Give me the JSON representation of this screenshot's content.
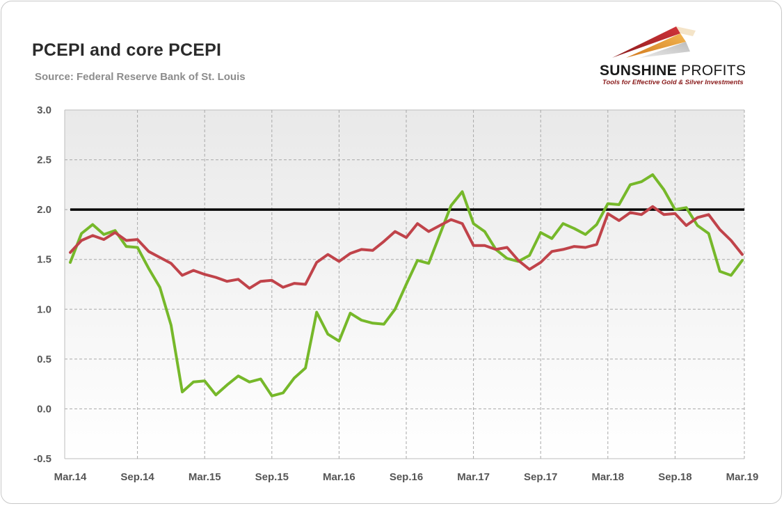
{
  "header": {
    "title": "PCEPI and core PCEPI",
    "subtitle": "Source: Federal Reserve Bank of St. Louis"
  },
  "logo": {
    "name_bold": "SUNSHINE",
    "name_light": " PROFITS",
    "tagline": "Tools for Effective Gold & Silver Investments"
  },
  "colors": {
    "pcepi": "#76b82a",
    "core_pcepi": "#c0434a",
    "reference_line": "#000000"
  },
  "chart_data": {
    "type": "line",
    "title": "PCEPI and core PCEPI",
    "xlabel": "",
    "ylabel": "",
    "ylim": [
      -0.5,
      3.0
    ],
    "yticks": [
      "3.0",
      "2.5",
      "2.0",
      "1.5",
      "1.0",
      "0.5",
      "0.0",
      "-0.5"
    ],
    "xticks": [
      "Mar.14",
      "Sep.14",
      "Mar.15",
      "Sep.15",
      "Mar.16",
      "Sep.16",
      "Mar.17",
      "Sep.17",
      "Mar.18",
      "Sep.18",
      "Mar.19"
    ],
    "grid": true,
    "legend": "none",
    "reference_line": 2.0,
    "x_start": "Mar.14",
    "x_end": "Mar.19",
    "series": [
      {
        "color": "#76b82a",
        "values": [
          1.47,
          1.76,
          1.85,
          1.75,
          1.79,
          1.63,
          1.62,
          1.41,
          1.22,
          0.84,
          0.17,
          0.27,
          0.28,
          0.14,
          0.24,
          0.33,
          0.27,
          0.3,
          0.13,
          0.16,
          0.31,
          0.41,
          0.97,
          0.75,
          0.68,
          0.96,
          0.89,
          0.86,
          0.85,
          1.0,
          1.25,
          1.49,
          1.46,
          1.75,
          2.04,
          2.18,
          1.86,
          1.78,
          1.6,
          1.51,
          1.48,
          1.54,
          1.77,
          1.71,
          1.86,
          1.81,
          1.75,
          1.85,
          2.06,
          2.05,
          2.25,
          2.28,
          2.35,
          2.2,
          2.0,
          2.02,
          1.84,
          1.76,
          1.38,
          1.34,
          1.49
        ]
      },
      {
        "color": "#c0434a",
        "values": [
          1.57,
          1.69,
          1.74,
          1.7,
          1.77,
          1.69,
          1.7,
          1.58,
          1.52,
          1.46,
          1.34,
          1.39,
          1.35,
          1.32,
          1.28,
          1.3,
          1.21,
          1.28,
          1.29,
          1.22,
          1.26,
          1.25,
          1.47,
          1.55,
          1.48,
          1.56,
          1.6,
          1.59,
          1.68,
          1.78,
          1.72,
          1.86,
          1.78,
          1.84,
          1.9,
          1.86,
          1.64,
          1.64,
          1.6,
          1.62,
          1.49,
          1.4,
          1.47,
          1.58,
          1.6,
          1.63,
          1.62,
          1.65,
          1.96,
          1.89,
          1.97,
          1.95,
          2.03,
          1.95,
          1.96,
          1.84,
          1.92,
          1.95,
          1.8,
          1.69,
          1.55
        ]
      }
    ]
  }
}
